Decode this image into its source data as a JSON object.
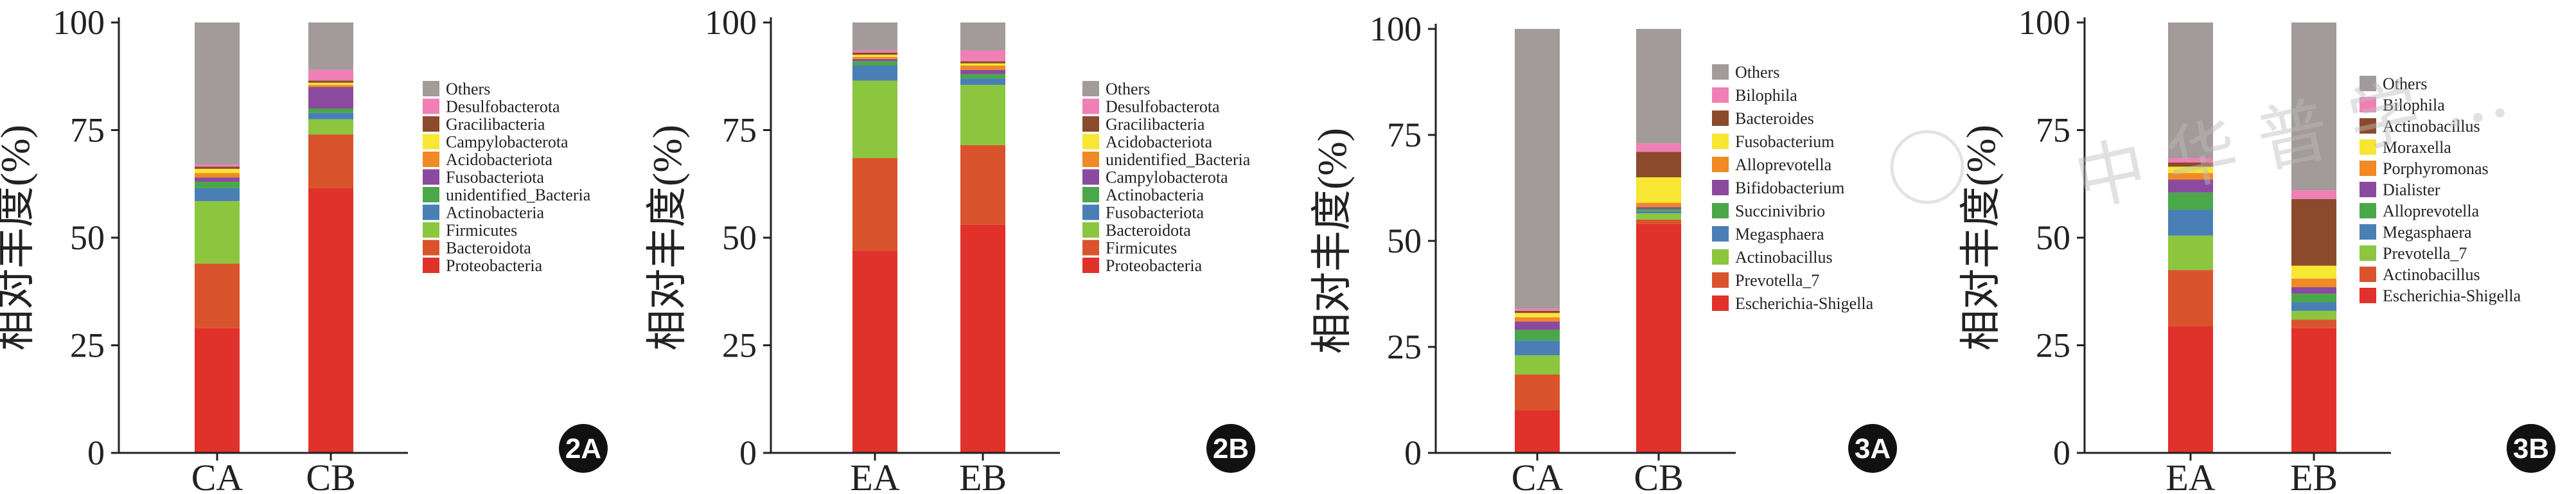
{
  "colors": {
    "red": "#e0322a",
    "orange_red": "#d9542c",
    "light_green": "#8cc63f",
    "blue": "#4a7fb5",
    "green": "#4aa84a",
    "purple": "#8b4a9e",
    "orange": "#f08a24",
    "yellow": "#f7e634",
    "brown": "#8b4a2b",
    "pink": "#ef7fb5",
    "gray": "#a39a9a"
  },
  "watermark_text": "中 华 普 学 ...",
  "chart_data": [
    {
      "type": "bar",
      "stacked": true,
      "panel_label": "2A",
      "categories": [
        "CA",
        "CB"
      ],
      "ylabel": "相对丰度(%)",
      "ylim": [
        0,
        100
      ],
      "yticks": [
        0,
        25,
        50,
        75,
        100
      ],
      "legend_position": "right",
      "series": [
        {
          "name": "Proteobacteria",
          "color": "#e0322a",
          "values": [
            29,
            61.5
          ]
        },
        {
          "name": "Bacteroidota",
          "color": "#d9542c",
          "values": [
            15,
            12.5
          ]
        },
        {
          "name": "Firmicutes",
          "color": "#8cc63f",
          "values": [
            14.5,
            3.5
          ]
        },
        {
          "name": "Actinobacteria",
          "color": "#4a7fb5",
          "values": [
            3,
            1.5
          ]
        },
        {
          "name": "unidentified_Bacteria",
          "color": "#4aa84a",
          "values": [
            1.5,
            1
          ]
        },
        {
          "name": "Fusobacteriota",
          "color": "#8b4a9e",
          "values": [
            1,
            5
          ]
        },
        {
          "name": "Acidobacteriota",
          "color": "#f08a24",
          "values": [
            1,
            0.5
          ]
        },
        {
          "name": "Campylobacterota",
          "color": "#f7e634",
          "values": [
            1,
            0.5
          ]
        },
        {
          "name": "Gracilibacteria",
          "color": "#8b4a2b",
          "values": [
            0.5,
            0.5
          ]
        },
        {
          "name": "Desulfobacterota",
          "color": "#ef7fb5",
          "values": [
            0.5,
            2.5
          ]
        },
        {
          "name": "Others",
          "color": "#a39a9a",
          "values": [
            33,
            11
          ]
        }
      ]
    },
    {
      "type": "bar",
      "stacked": true,
      "panel_label": "2B",
      "categories": [
        "EA",
        "EB"
      ],
      "ylabel": "相对丰度(%)",
      "ylim": [
        0,
        100
      ],
      "yticks": [
        0,
        25,
        50,
        75,
        100
      ],
      "legend_position": "right",
      "series": [
        {
          "name": "Proteobacteria",
          "color": "#e0322a",
          "values": [
            47,
            53
          ]
        },
        {
          "name": "Firmicutes",
          "color": "#d9542c",
          "values": [
            21.5,
            18.5
          ]
        },
        {
          "name": "Bacteroidota",
          "color": "#8cc63f",
          "values": [
            18,
            14
          ]
        },
        {
          "name": "Fusobacteriota",
          "color": "#4a7fb5",
          "values": [
            3.5,
            1.5
          ]
        },
        {
          "name": "Actinobacteria",
          "color": "#4aa84a",
          "values": [
            1,
            1
          ]
        },
        {
          "name": "Campylobacterota",
          "color": "#8b4a9e",
          "values": [
            0.5,
            1
          ]
        },
        {
          "name": "unidentified_Bacteria",
          "color": "#f08a24",
          "values": [
            0.5,
            1
          ]
        },
        {
          "name": "Acidobacteriota",
          "color": "#f7e634",
          "values": [
            0.5,
            0.5
          ]
        },
        {
          "name": "Gracilibacteria",
          "color": "#8b4a2b",
          "values": [
            0.5,
            0.5
          ]
        },
        {
          "name": "Desulfobacterota",
          "color": "#ef7fb5",
          "values": [
            0.5,
            2.5
          ]
        },
        {
          "name": "Others",
          "color": "#a39a9a",
          "values": [
            6.5,
            6.5
          ]
        }
      ]
    },
    {
      "type": "bar",
      "stacked": true,
      "panel_label": "3A",
      "categories": [
        "CA",
        "CB"
      ],
      "ylabel": "相对丰度(%)",
      "ylim": [
        0,
        100
      ],
      "yticks": [
        0,
        25,
        50,
        75,
        100
      ],
      "legend_position": "right",
      "series": [
        {
          "name": "Escherichia-Shigella",
          "color": "#e0322a",
          "values": [
            10,
            54
          ]
        },
        {
          "name": "Prevotella_7",
          "color": "#d9542c",
          "values": [
            8.5,
            1
          ]
        },
        {
          "name": "Actinobacillus",
          "color": "#8cc63f",
          "values": [
            4.5,
            1.5
          ]
        },
        {
          "name": "Megasphaera",
          "color": "#4a7fb5",
          "values": [
            3.5,
            0.5
          ]
        },
        {
          "name": "Succinivibrio",
          "color": "#4aa84a",
          "values": [
            2.5,
            0.5
          ]
        },
        {
          "name": "Bifidobacterium",
          "color": "#8b4a9e",
          "values": [
            2,
            0.5
          ]
        },
        {
          "name": "Alloprevotella",
          "color": "#f08a24",
          "values": [
            1,
            1
          ]
        },
        {
          "name": "Fusobacterium",
          "color": "#f7e634",
          "values": [
            1,
            6
          ]
        },
        {
          "name": "Bacteroides",
          "color": "#8b4a2b",
          "values": [
            0.5,
            6
          ]
        },
        {
          "name": "Bilophila",
          "color": "#ef7fb5",
          "values": [
            0.5,
            2
          ]
        },
        {
          "name": "Others",
          "color": "#a39a9a",
          "values": [
            66,
            27
          ]
        }
      ]
    },
    {
      "type": "bar",
      "stacked": true,
      "panel_label": "3B",
      "categories": [
        "EA",
        "EB"
      ],
      "ylabel": "相对丰度(%)",
      "ylim": [
        0,
        100
      ],
      "yticks": [
        0,
        25,
        50,
        75,
        100
      ],
      "legend_position": "right",
      "series": [
        {
          "name": "Escherichia-Shigella",
          "color": "#e0322a",
          "values": [
            29.5,
            29
          ]
        },
        {
          "name": "Actinobacillus",
          "color": "#d9542c",
          "values": [
            13,
            2
          ]
        },
        {
          "name": "Prevotella_7",
          "color": "#8cc63f",
          "values": [
            8,
            2
          ]
        },
        {
          "name": "Megasphaera",
          "color": "#4a7fb5",
          "values": [
            6,
            2
          ]
        },
        {
          "name": "Alloprevotella",
          "color": "#4aa84a",
          "values": [
            4,
            2
          ]
        },
        {
          "name": "Dialister",
          "color": "#8b4a9e",
          "values": [
            3,
            1.5
          ]
        },
        {
          "name": "Porphyromonas",
          "color": "#f08a24",
          "values": [
            1.5,
            2
          ]
        },
        {
          "name": "Moraxella",
          "color": "#f7e634",
          "values": [
            1.5,
            3
          ]
        },
        {
          "name": "Actinobacillus",
          "color": "#8b4a2b",
          "values": [
            1,
            15.5
          ]
        },
        {
          "name": "Bilophila",
          "color": "#ef7fb5",
          "values": [
            1,
            2
          ]
        },
        {
          "name": "Others",
          "color": "#a39a9a",
          "values": [
            31.5,
            39
          ]
        }
      ]
    }
  ]
}
